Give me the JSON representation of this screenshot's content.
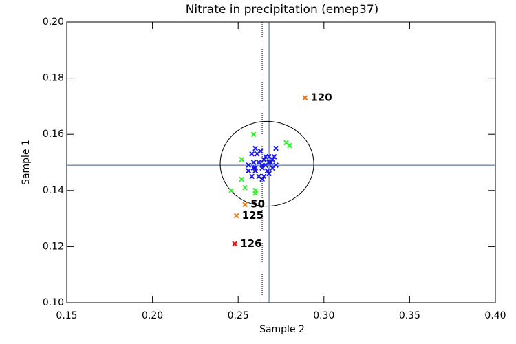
{
  "chart_data": {
    "type": "scatter",
    "title": "Nitrate in precipitation (emep37)",
    "x_label": "Sample 2",
    "y_label": "Sample 1",
    "xlim": [
      0.15,
      0.4
    ],
    "ylim": [
      0.1,
      0.2
    ],
    "xticks": [
      0.15,
      {
        "value": 0.2,
        "label": "0.20"
      },
      0.25,
      {
        "value": 0.3,
        "label": "0.30"
      },
      0.35,
      {
        "value": 0.4,
        "label": "0.40"
      }
    ],
    "yticks": [
      {
        "value": 0.1,
        "label": "0.10"
      },
      0.12,
      0.14,
      0.16,
      0.18,
      {
        "value": 0.2,
        "label": "0.20"
      }
    ],
    "hlines": [
      {
        "value": 0.149,
        "style": "solid",
        "color": "#3a5a8a"
      }
    ],
    "vlines": [
      {
        "value": 0.268,
        "style": "solid",
        "color": "#3a5a8a"
      },
      {
        "value": 0.264,
        "style": "dotted",
        "color": "#000000"
      }
    ],
    "ellipse": {
      "cx": 0.2668,
      "cy": 0.1495,
      "rx": 0.0273,
      "ry": 0.0151,
      "color": "#000000"
    },
    "series": [
      {
        "color": "#1a1aee",
        "x": [
          0.26,
          0.258,
          0.263,
          0.261,
          0.265,
          0.256,
          0.259,
          0.26,
          0.262,
          0.264,
          0.265,
          0.268,
          0.27,
          0.272,
          0.271,
          0.268,
          0.266,
          0.264,
          0.262,
          0.266,
          0.268,
          0.27,
          0.256,
          0.258,
          0.26,
          0.264,
          0.267,
          0.269,
          0.272,
          0.259
        ],
        "values": [
          0.155,
          0.153,
          0.154,
          0.153,
          0.151,
          0.149,
          0.148,
          0.147,
          0.145,
          0.144,
          0.145,
          0.146,
          0.148,
          0.149,
          0.152,
          0.15,
          0.149,
          0.149,
          0.15,
          0.152,
          0.152,
          0.151,
          0.147,
          0.145,
          0.148,
          0.148,
          0.147,
          0.15,
          0.155,
          0.15
        ]
      },
      {
        "color": "#33ee33",
        "x": [
          0.246,
          0.259,
          0.252,
          0.252,
          0.254,
          0.26,
          0.26,
          0.278,
          0.28
        ],
        "values": [
          0.14,
          0.16,
          0.151,
          0.144,
          0.141,
          0.14,
          0.139,
          0.157,
          0.156
        ]
      },
      {
        "color": "#e87a1a",
        "x": [
          0.289,
          0.254,
          0.249
        ],
        "values": [
          0.173,
          0.135,
          0.131
        ],
        "labels": [
          "120",
          "50",
          "125"
        ]
      },
      {
        "color": "#ee1111",
        "x": [
          0.248
        ],
        "values": [
          0.121
        ],
        "labels": [
          "126"
        ]
      }
    ]
  }
}
